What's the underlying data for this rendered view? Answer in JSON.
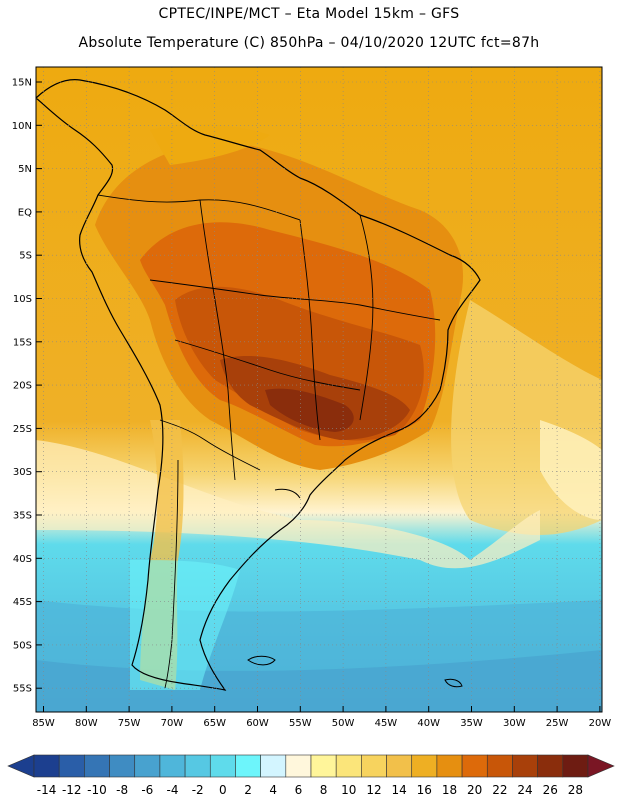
{
  "header": {
    "line1": "CPTEC/INPE/MCT  –   Eta Model 15km  –  GFS",
    "line2": "Absolute Temperature (C) 850hPa – 04/10/2020 12UTC fct=87h"
  },
  "map": {
    "lat_labels": [
      "15N",
      "10N",
      "5N",
      "EQ",
      "5S",
      "10S",
      "15S",
      "20S",
      "25S",
      "30S",
      "35S",
      "40S",
      "45S",
      "50S",
      "55S"
    ],
    "lon_labels": [
      "85W",
      "80W",
      "75W",
      "70W",
      "65W",
      "60W",
      "55W",
      "50W",
      "45W",
      "40W",
      "35W",
      "30W",
      "25W",
      "20W"
    ]
  },
  "colorbar": {
    "labels": [
      "-14",
      "-12",
      "-10",
      "-8",
      "-6",
      "-4",
      "-2",
      "0",
      "2",
      "4",
      "6",
      "8",
      "10",
      "12",
      "14",
      "16",
      "18",
      "20",
      "22",
      "24",
      "26",
      "28"
    ],
    "colors": [
      "#1c3f8f",
      "#2a5ea8",
      "#3575b5",
      "#3f8cc2",
      "#48a2cf",
      "#4fb6da",
      "#56c8e3",
      "#5fdbeb",
      "#6df5fb",
      "#d3f5ff",
      "#fff7dc",
      "#fff59a",
      "#fbe57a",
      "#f7d35e",
      "#f2c04a",
      "#eeaf23",
      "#e68f10",
      "#dd6a0a",
      "#c85608",
      "#a8400a",
      "#8a2d0c",
      "#6e1c12"
    ]
  }
}
